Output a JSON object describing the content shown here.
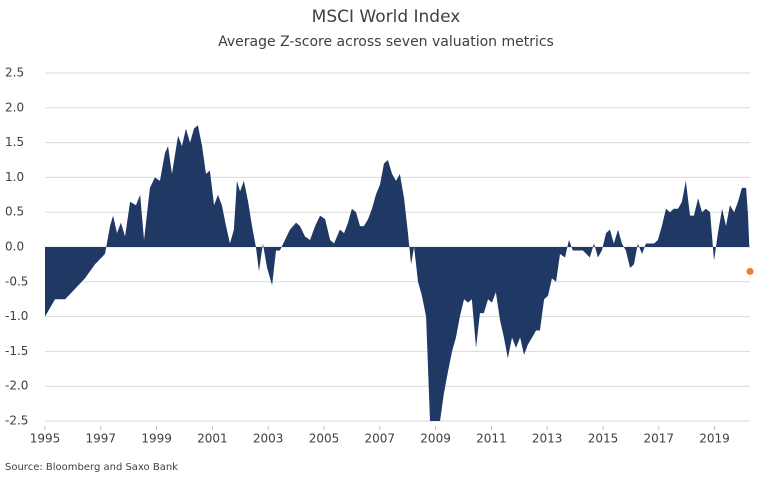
{
  "chart_data": {
    "type": "area",
    "title": "MSCI World Index",
    "subtitle": "Average Z-score across seven valuation metrics",
    "source": "Source: Bloomberg and Saxo Bank",
    "color": "#1f3864",
    "grid": true,
    "xlim": [
      1995,
      2020.27
    ],
    "xticks": [
      1995,
      1997,
      1999,
      2001,
      2003,
      2005,
      2007,
      2009,
      2011,
      2013,
      2015,
      2017,
      2019
    ],
    "ylim": [
      -2.5,
      2.5
    ],
    "yticks": [
      2.5,
      {
        "value": 2,
        "label": "2.0"
      },
      1.5,
      {
        "value": 1,
        "label": "1.0"
      },
      0.5,
      {
        "value": 0,
        "label": "0.0"
      },
      -0.5,
      {
        "value": -1,
        "label": "-1.0"
      },
      -1.5,
      {
        "value": -2,
        "label": "-2.0"
      },
      -2.5
    ],
    "x": [
      1995.0,
      1995.36,
      1995.72,
      1996.08,
      1996.43,
      1996.79,
      1997.15,
      1997.33,
      1997.44,
      1997.58,
      1997.72,
      1997.87,
      1998.05,
      1998.26,
      1998.41,
      1998.55,
      1998.76,
      1998.94,
      1999.12,
      1999.3,
      1999.41,
      1999.55,
      1999.77,
      1999.91,
      2000.05,
      2000.2,
      2000.34,
      2000.48,
      2000.63,
      2000.77,
      2000.91,
      2001.06,
      2001.2,
      2001.34,
      2001.49,
      2001.63,
      2001.77,
      2001.88,
      2001.99,
      2002.13,
      2002.28,
      2002.42,
      2002.56,
      2002.67,
      2002.81,
      2002.96,
      2003.14,
      2003.28,
      2003.42,
      2003.6,
      2003.78,
      2004.0,
      2004.14,
      2004.32,
      2004.5,
      2004.68,
      2004.86,
      2005.04,
      2005.22,
      2005.36,
      2005.57,
      2005.72,
      2005.86,
      2006.0,
      2006.15,
      2006.29,
      2006.43,
      2006.58,
      2006.72,
      2006.86,
      2007.01,
      2007.15,
      2007.29,
      2007.44,
      2007.58,
      2007.72,
      2007.87,
      2008.01,
      2008.12,
      2008.23,
      2008.37,
      2008.51,
      2008.66,
      2008.8,
      2008.94,
      2009.16,
      2009.3,
      2009.44,
      2009.59,
      2009.73,
      2009.87,
      2010.02,
      2010.16,
      2010.3,
      2010.45,
      2010.59,
      2010.73,
      2010.88,
      2011.02,
      2011.16,
      2011.31,
      2011.45,
      2011.59,
      2011.74,
      2011.88,
      2012.03,
      2012.17,
      2012.31,
      2012.46,
      2012.6,
      2012.74,
      2012.89,
      2013.03,
      2013.17,
      2013.32,
      2013.46,
      2013.64,
      2013.78,
      2013.92,
      2014.1,
      2014.28,
      2014.53,
      2014.68,
      2014.82,
      2014.96,
      2015.11,
      2015.25,
      2015.39,
      2015.54,
      2015.68,
      2015.82,
      2015.97,
      2016.11,
      2016.25,
      2016.4,
      2016.54,
      2016.68,
      2016.83,
      2016.97,
      2017.11,
      2017.26,
      2017.4,
      2017.54,
      2017.69,
      2017.83,
      2017.97,
      2018.12,
      2018.26,
      2018.41,
      2018.55,
      2018.69,
      2018.84,
      2018.98,
      2019.12,
      2019.27,
      2019.41,
      2019.55,
      2019.7,
      2019.84,
      2019.98,
      2020.13,
      2020.2,
      2020.25
    ],
    "values": [
      -1.0,
      -0.75,
      -0.75,
      -0.6,
      -0.45,
      -0.25,
      -0.1,
      0.3,
      0.45,
      0.2,
      0.35,
      0.15,
      0.65,
      0.6,
      0.75,
      0.1,
      0.85,
      1.0,
      0.95,
      1.35,
      1.45,
      1.05,
      1.6,
      1.45,
      1.7,
      1.5,
      1.7,
      1.75,
      1.45,
      1.05,
      1.1,
      0.6,
      0.75,
      0.6,
      0.3,
      0.05,
      0.25,
      0.95,
      0.8,
      0.95,
      0.65,
      0.3,
      0.0,
      -0.35,
      0.05,
      -0.3,
      -0.55,
      -0.05,
      -0.05,
      0.1,
      0.25,
      0.35,
      0.3,
      0.15,
      0.1,
      0.3,
      0.45,
      0.4,
      0.1,
      0.05,
      0.25,
      0.2,
      0.35,
      0.55,
      0.5,
      0.3,
      0.3,
      0.4,
      0.55,
      0.75,
      0.9,
      1.2,
      1.25,
      1.05,
      0.95,
      1.05,
      0.7,
      0.2,
      -0.25,
      0.0,
      -0.5,
      -0.7,
      -1.0,
      -2.5,
      -2.5,
      -2.5,
      -2.1,
      -1.8,
      -1.5,
      -1.3,
      -1.0,
      -0.75,
      -0.8,
      -0.75,
      -1.45,
      -0.95,
      -0.95,
      -0.75,
      -0.8,
      -0.65,
      -1.05,
      -1.3,
      -1.6,
      -1.3,
      -1.45,
      -1.3,
      -1.55,
      -1.4,
      -1.3,
      -1.2,
      -1.2,
      -0.75,
      -0.7,
      -0.45,
      -0.5,
      -0.1,
      -0.15,
      0.1,
      -0.05,
      -0.05,
      -0.05,
      -0.15,
      0.05,
      -0.15,
      -0.05,
      0.2,
      0.25,
      0.05,
      0.25,
      0.05,
      -0.05,
      -0.3,
      -0.25,
      0.05,
      -0.1,
      0.05,
      0.05,
      0.05,
      0.1,
      0.3,
      0.55,
      0.5,
      0.55,
      0.55,
      0.65,
      0.95,
      0.45,
      0.45,
      0.7,
      0.5,
      0.55,
      0.5,
      -0.2,
      0.2,
      0.55,
      0.3,
      0.6,
      0.5,
      0.65,
      0.85,
      0.85,
      0.45,
      -0.05
    ],
    "highlight": {
      "x": 2020.27,
      "value": -0.35,
      "color": "#ed7d31"
    }
  }
}
